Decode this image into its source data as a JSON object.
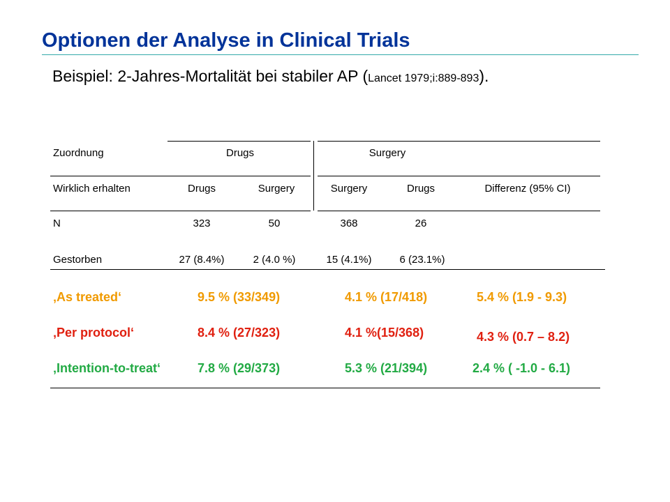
{
  "title": "Optionen der Analyse in Clinical Trials",
  "subtitle": {
    "main": "Beispiel: 2-Jahres-Mortalität bei stabiler AP (",
    "reference": "Lancet 1979;i:889-893",
    "end": ")."
  },
  "colors": {
    "title": "#003399",
    "as_treated": "#f09a00",
    "per_protocol": "#e02010",
    "intention_to_treat": "#22aa44"
  },
  "table": {
    "row_zuordnung": {
      "label": "Zuordnung",
      "drugs": "Drugs",
      "surgery": "Surgery"
    },
    "row_erhalten": {
      "label": "Wirklich erhalten",
      "c1": "Drugs",
      "c2": "Surgery",
      "c3": "Surgery",
      "c4": "Drugs",
      "diff": "Differenz (95% CI)"
    },
    "row_n": {
      "label": "N",
      "c1": "323",
      "c2": "50",
      "c3": "368",
      "c4": "26"
    },
    "row_gestorben": {
      "label": "Gestorben",
      "c1": "27 (8.4%)",
      "c2": "2 (4.0 %)",
      "c3": "15 (4.1%)",
      "c4": "6 (23.1%)"
    }
  },
  "analyses": {
    "as_treated": {
      "label": "‚As treated‘",
      "drugs": "9.5 % (33/349)",
      "surgery": "4.1 % (17/418)",
      "diff": "5.4 % (1.9 - 9.3)"
    },
    "per_protocol": {
      "label": "‚Per protocol‘",
      "drugs": "8.4 % (27/323)",
      "surgery": "4.1 %(15/368)",
      "diff": "4.3 % (0.7 – 8.2)"
    },
    "intention_to_treat": {
      "label": "‚Intention-to-treat‘",
      "drugs": "7.8 % (29/373)",
      "surgery": "5.3 % (21/394)",
      "diff": "2.4 % ( -1.0 - 6.1)"
    }
  }
}
